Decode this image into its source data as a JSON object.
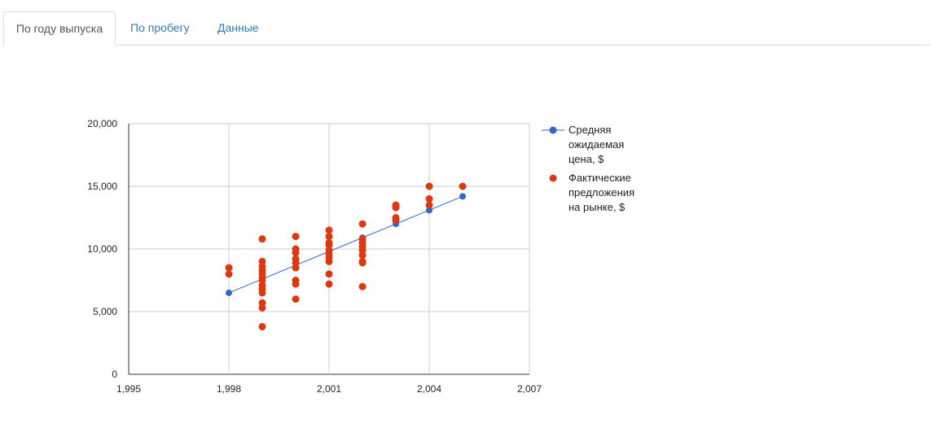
{
  "tabs": [
    {
      "label": "По году выпуска",
      "active": true
    },
    {
      "label": "По пробегу",
      "active": false
    },
    {
      "label": "Данные",
      "active": false
    }
  ],
  "chart_data": {
    "type": "scatter",
    "title": "",
    "xlabel": "",
    "ylabel": "",
    "xlim": [
      1995,
      2007
    ],
    "ylim": [
      0,
      20000
    ],
    "x_ticks": [
      1995,
      1998,
      2001,
      2004,
      2007
    ],
    "x_tick_labels": [
      "1,995",
      "1,998",
      "2,001",
      "2,004",
      "2,007"
    ],
    "y_ticks": [
      0,
      5000,
      10000,
      15000,
      20000
    ],
    "y_tick_labels": [
      "0",
      "5,000",
      "10,000",
      "15,000",
      "20,000"
    ],
    "grid": true,
    "legend_position": "right",
    "series": [
      {
        "name": "Средняя ожидаемая цена, $",
        "kind": "line-with-markers",
        "color": "#3366cc",
        "points": [
          [
            1998,
            6500
          ],
          [
            2002,
            10900
          ],
          [
            2003,
            12000
          ],
          [
            2004,
            13100
          ],
          [
            2005,
            14200
          ]
        ]
      },
      {
        "name": "Фактические предложения на рынке, $",
        "kind": "scatter",
        "color": "#dc3912",
        "points": [
          [
            1998,
            8500
          ],
          [
            1998,
            8000
          ],
          [
            1999,
            10800
          ],
          [
            1999,
            9000
          ],
          [
            1999,
            8600
          ],
          [
            1999,
            8300
          ],
          [
            1999,
            8000
          ],
          [
            1999,
            7700
          ],
          [
            1999,
            7500
          ],
          [
            1999,
            7100
          ],
          [
            1999,
            6800
          ],
          [
            1999,
            6500
          ],
          [
            1999,
            5700
          ],
          [
            1999,
            5300
          ],
          [
            1999,
            3800
          ],
          [
            2000,
            11000
          ],
          [
            2000,
            10000
          ],
          [
            2000,
            9700
          ],
          [
            2000,
            9200
          ],
          [
            2000,
            8900
          ],
          [
            2000,
            8500
          ],
          [
            2000,
            7500
          ],
          [
            2000,
            7200
          ],
          [
            2000,
            6000
          ],
          [
            2001,
            11500
          ],
          [
            2001,
            11000
          ],
          [
            2001,
            10500
          ],
          [
            2001,
            10300
          ],
          [
            2001,
            9900
          ],
          [
            2001,
            9600
          ],
          [
            2001,
            9300
          ],
          [
            2001,
            9000
          ],
          [
            2001,
            8000
          ],
          [
            2001,
            7200
          ],
          [
            2002,
            12000
          ],
          [
            2002,
            10800
          ],
          [
            2002,
            10500
          ],
          [
            2002,
            10200
          ],
          [
            2002,
            9900
          ],
          [
            2002,
            9500
          ],
          [
            2002,
            9000
          ],
          [
            2002,
            8900
          ],
          [
            2002,
            7000
          ],
          [
            2003,
            13500
          ],
          [
            2003,
            13300
          ],
          [
            2003,
            12500
          ],
          [
            2003,
            12300
          ],
          [
            2004,
            15000
          ],
          [
            2004,
            14000
          ],
          [
            2004,
            13500
          ],
          [
            2005,
            15000
          ]
        ]
      }
    ]
  },
  "legend": {
    "items": [
      {
        "lines": [
          "Средняя",
          "ожидаемая",
          "цена, $"
        ]
      },
      {
        "lines": [
          "Фактические",
          "предложения",
          "на рынке, $"
        ]
      }
    ]
  }
}
